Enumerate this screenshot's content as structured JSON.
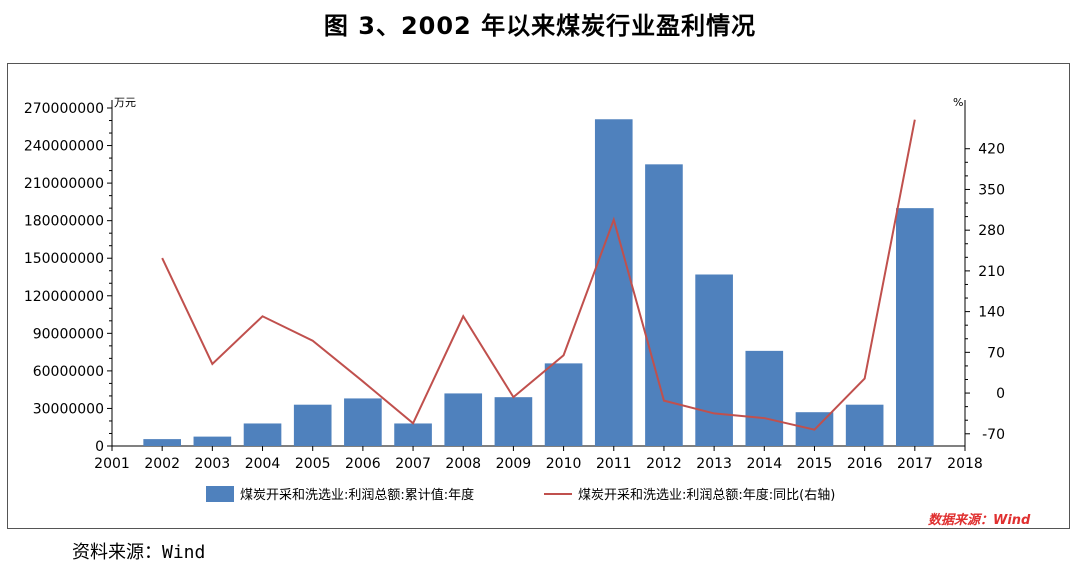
{
  "page": {
    "title": "图 3、2002 年以来煤炭行业盈利情况",
    "source_note": "数据来源：Wind",
    "footer_source": "资料来源：Wind"
  },
  "chart_data": {
    "type": "bar",
    "categories": [
      "2001",
      "2002",
      "2003",
      "2004",
      "2005",
      "2006",
      "2007",
      "2008",
      "2009",
      "2010",
      "2011",
      "2012",
      "2013",
      "2014",
      "2015",
      "2016",
      "2017",
      "2018"
    ],
    "series": [
      {
        "name": "煤炭开采和洗选业:利润总额:累计值:年度",
        "type": "bar",
        "axis": "left",
        "color": "#4f81bd",
        "values": [
          null,
          5500000,
          7500000,
          18000000,
          33000000,
          38000000,
          18000000,
          42000000,
          39000000,
          66000000,
          261000000,
          225000000,
          137000000,
          76000000,
          27000000,
          33000000,
          190000000,
          null
        ]
      },
      {
        "name": "煤炭开采和洗选业:利润总额:年度:同比(右轴)",
        "type": "line",
        "axis": "right",
        "color": "#c0504d",
        "values": [
          null,
          232,
          50,
          132,
          90,
          20,
          -52,
          132,
          -7,
          65,
          298,
          -13,
          -35,
          -43,
          -63,
          25,
          470,
          null
        ]
      }
    ],
    "y_left": {
      "unit": "万元",
      "ticks": [
        0,
        30000000,
        60000000,
        90000000,
        120000000,
        150000000,
        180000000,
        210000000,
        240000000,
        270000000
      ],
      "ylim": [
        0,
        270000000
      ]
    },
    "y_right": {
      "unit": "%",
      "ticks": [
        -70,
        0,
        70,
        140,
        210,
        280,
        350,
        420
      ],
      "ylim": [
        -91,
        490
      ]
    },
    "legend_position": "bottom",
    "grid": false
  }
}
